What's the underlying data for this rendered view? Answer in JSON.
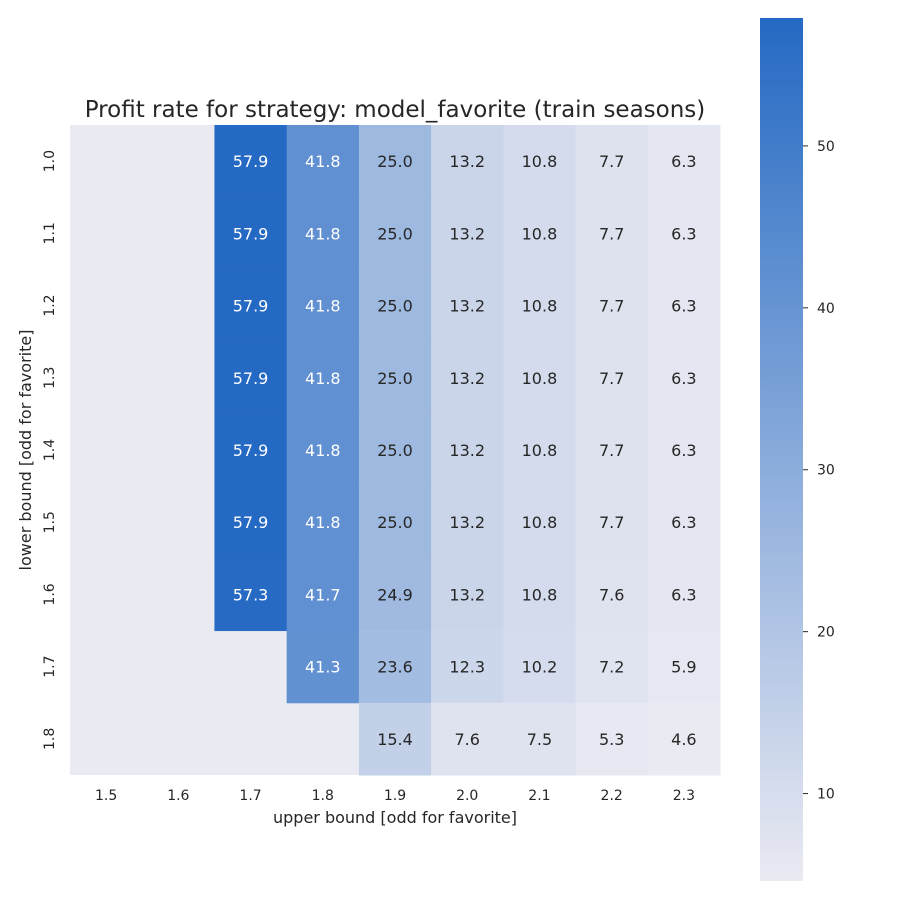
{
  "chart_data": {
    "type": "heatmap",
    "title": "Profit rate for strategy: model_favorite (train seasons)",
    "xlabel": "upper bound [odd for favorite]",
    "ylabel": "lower bound [odd for favorite]",
    "x_categories": [
      "1.5",
      "1.6",
      "1.7",
      "1.8",
      "1.9",
      "2.0",
      "2.1",
      "2.2",
      "2.3"
    ],
    "y_categories": [
      "1.0",
      "1.1",
      "1.2",
      "1.3",
      "1.4",
      "1.5",
      "1.6",
      "1.7",
      "1.8"
    ],
    "values": [
      [
        null,
        null,
        57.9,
        41.8,
        25.0,
        13.2,
        10.8,
        7.7,
        6.3
      ],
      [
        null,
        null,
        57.9,
        41.8,
        25.0,
        13.2,
        10.8,
        7.7,
        6.3
      ],
      [
        null,
        null,
        57.9,
        41.8,
        25.0,
        13.2,
        10.8,
        7.7,
        6.3
      ],
      [
        null,
        null,
        57.9,
        41.8,
        25.0,
        13.2,
        10.8,
        7.7,
        6.3
      ],
      [
        null,
        null,
        57.9,
        41.8,
        25.0,
        13.2,
        10.8,
        7.7,
        6.3
      ],
      [
        null,
        null,
        57.9,
        41.8,
        25.0,
        13.2,
        10.8,
        7.7,
        6.3
      ],
      [
        null,
        null,
        57.3,
        41.7,
        24.9,
        13.2,
        10.8,
        7.6,
        6.3
      ],
      [
        null,
        null,
        null,
        41.3,
        23.6,
        12.3,
        10.2,
        7.2,
        5.9
      ],
      [
        null,
        null,
        null,
        null,
        15.4,
        7.6,
        7.5,
        5.3,
        4.6
      ]
    ],
    "colorbar": {
      "min": 4.6,
      "max": 57.9,
      "ticks": [
        10,
        20,
        30,
        40,
        50
      ],
      "low_color": "#eaeaf2",
      "high_color": "#2469c3"
    },
    "background_color": "#eaeaf2",
    "dark_text_color": "#262626",
    "light_text_color": "#ffffff"
  }
}
